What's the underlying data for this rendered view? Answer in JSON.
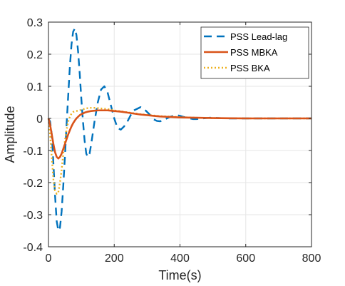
{
  "chart_data": {
    "type": "line",
    "title": "",
    "xlabel": "Time(s)",
    "ylabel": "Amplitude",
    "xlim": [
      0,
      800
    ],
    "ylim": [
      -0.4,
      0.3
    ],
    "xticks": [
      0,
      200,
      400,
      600,
      800
    ],
    "yticks": [
      -0.4,
      -0.3,
      -0.2,
      -0.1,
      0,
      0.1,
      0.2,
      0.3
    ],
    "xtick_labels": [
      "0",
      "200",
      "400",
      "600",
      "800"
    ],
    "ytick_labels": [
      "-0.4",
      "-0.3",
      "-0.2",
      "-0.1",
      "0",
      "0.1",
      "0.2",
      "0.3"
    ],
    "grid": true,
    "legend_position": "top-right",
    "series": [
      {
        "name": "PSS Lead-lag",
        "color": "#0072BD",
        "style": "dashed",
        "x": [
          0,
          5,
          10,
          15,
          20,
          25,
          30,
          35,
          40,
          45,
          50,
          55,
          60,
          65,
          70,
          75,
          80,
          85,
          90,
          95,
          100,
          105,
          110,
          115,
          120,
          125,
          130,
          140,
          150,
          160,
          170,
          180,
          190,
          200,
          210,
          220,
          230,
          240,
          250,
          260,
          270,
          280,
          290,
          300,
          310,
          320,
          330,
          340,
          350,
          360,
          370,
          380,
          390,
          400,
          410,
          420,
          430,
          440,
          450,
          460,
          470,
          480,
          490,
          500,
          510,
          520,
          530,
          540,
          560,
          580,
          600,
          650,
          700,
          750,
          800
        ],
        "y": [
          0,
          -0.01,
          -0.05,
          -0.14,
          -0.24,
          -0.32,
          -0.35,
          -0.34,
          -0.29,
          -0.21,
          -0.12,
          -0.02,
          0.07,
          0.16,
          0.23,
          0.27,
          0.28,
          0.26,
          0.21,
          0.14,
          0.06,
          -0.01,
          -0.07,
          -0.11,
          -0.12,
          -0.11,
          -0.08,
          -0.01,
          0.05,
          0.09,
          0.1,
          0.08,
          0.04,
          0.0,
          -0.03,
          -0.035,
          -0.025,
          -0.01,
          0.01,
          0.025,
          0.03,
          0.035,
          0.03,
          0.02,
          0.01,
          -0.003,
          -0.008,
          -0.009,
          -0.005,
          0.0,
          0.005,
          0.008,
          0.01,
          0.008,
          0.005,
          0.002,
          0.0,
          -0.002,
          -0.002,
          -0.001,
          0.0,
          0.001,
          0.002,
          0.002,
          0.0015,
          0.001,
          0.0005,
          0.0,
          0.0,
          0.0,
          0.0,
          0.0,
          0.0,
          0.0,
          0.0
        ]
      },
      {
        "name": "PSS MBKA",
        "color": "#D95319",
        "style": "solid",
        "x": [
          0,
          5,
          10,
          15,
          20,
          25,
          30,
          35,
          40,
          45,
          50,
          55,
          60,
          65,
          70,
          75,
          80,
          85,
          90,
          95,
          100,
          110,
          120,
          130,
          140,
          150,
          160,
          170,
          180,
          190,
          200,
          220,
          240,
          260,
          280,
          300,
          320,
          340,
          360,
          380,
          400,
          450,
          500,
          550,
          600,
          650,
          700,
          750,
          800
        ],
        "y": [
          0,
          -0.02,
          -0.05,
          -0.08,
          -0.105,
          -0.12,
          -0.125,
          -0.12,
          -0.11,
          -0.095,
          -0.08,
          -0.065,
          -0.05,
          -0.037,
          -0.025,
          -0.015,
          -0.007,
          0.0,
          0.005,
          0.01,
          0.013,
          0.018,
          0.021,
          0.023,
          0.024,
          0.025,
          0.025,
          0.025,
          0.025,
          0.024,
          0.023,
          0.021,
          0.018,
          0.015,
          0.012,
          0.01,
          0.008,
          0.006,
          0.005,
          0.004,
          0.003,
          0.002,
          0.001,
          0.0005,
          0.0,
          0.0,
          0.0,
          0.0,
          0.0
        ]
      },
      {
        "name": "PSS BKA",
        "color": "#EDB120",
        "style": "dotted",
        "x": [
          0,
          5,
          10,
          15,
          20,
          25,
          30,
          35,
          40,
          45,
          50,
          55,
          60,
          65,
          70,
          75,
          80,
          85,
          90,
          95,
          100,
          110,
          120,
          130,
          140,
          150,
          160,
          170,
          180,
          190,
          200,
          220,
          240,
          260,
          280,
          300,
          320,
          340,
          360,
          380,
          400,
          450,
          500,
          550,
          600,
          650,
          700,
          750,
          800
        ],
        "y": [
          0,
          -0.05,
          -0.12,
          -0.19,
          -0.225,
          -0.235,
          -0.23,
          -0.2,
          -0.16,
          -0.11,
          -0.07,
          -0.035,
          -0.01,
          0.005,
          0.015,
          0.02,
          0.022,
          0.023,
          0.024,
          0.025,
          0.027,
          0.03,
          0.032,
          0.033,
          0.033,
          0.032,
          0.031,
          0.03,
          0.029,
          0.027,
          0.025,
          0.022,
          0.019,
          0.016,
          0.013,
          0.011,
          0.009,
          0.007,
          0.006,
          0.005,
          0.004,
          0.002,
          0.001,
          0.0005,
          0.0,
          0.0,
          0.0,
          0.0,
          0.0
        ]
      }
    ]
  }
}
